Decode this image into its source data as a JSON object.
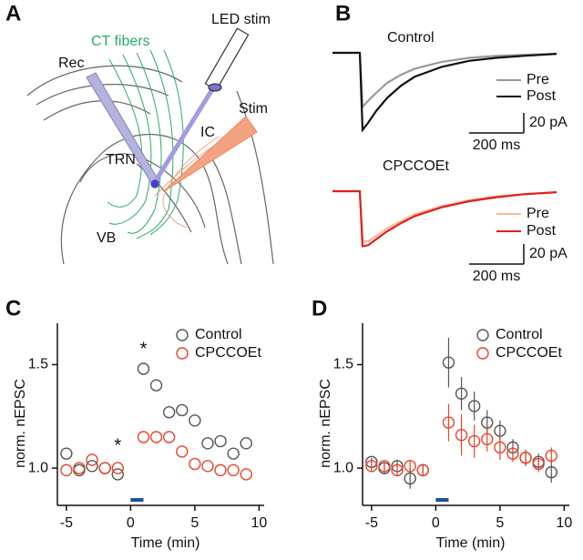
{
  "panels": [
    "A",
    "B",
    "C",
    "D"
  ],
  "diagram": {
    "labels": [
      "CT fibers",
      "LED stim",
      "Rec",
      "Stim",
      "IC",
      "TRN",
      "VB"
    ]
  },
  "chart_data": [
    {
      "type": "line",
      "title": "Control",
      "x": [
        0,
        100,
        110,
        130,
        160,
        200,
        250,
        300,
        400,
        500,
        600,
        700,
        820
      ],
      "series": [
        {
          "name": "Pre",
          "color": "#999999",
          "values": [
            0,
            0,
            -54,
            -48,
            -40,
            -30,
            -22,
            -16,
            -9,
            -5,
            -3,
            -2,
            -1
          ]
        },
        {
          "name": "Post",
          "color": "#111111",
          "values": [
            0,
            0,
            -77,
            -70,
            -58,
            -45,
            -33,
            -24,
            -14,
            -8,
            -5,
            -3,
            -1
          ]
        }
      ],
      "scalebar": {
        "x": {
          "value": 200,
          "label": "200 ms"
        },
        "y": {
          "value": 20,
          "label": "20 pA"
        }
      }
    },
    {
      "type": "line",
      "title": "CPCCOEt",
      "x": [
        0,
        100,
        110,
        130,
        160,
        200,
        250,
        300,
        400,
        500,
        600,
        700,
        820
      ],
      "series": [
        {
          "name": "Pre",
          "color": "#f6b8a0",
          "values": [
            0,
            0,
            -50,
            -50,
            -45,
            -37,
            -30,
            -23,
            -15,
            -9,
            -5,
            -3,
            -1
          ]
        },
        {
          "name": "Post",
          "color": "#e0201b",
          "values": [
            0,
            0,
            -55,
            -54,
            -48,
            -40,
            -32,
            -25,
            -16,
            -10,
            -6,
            -3,
            -1
          ]
        }
      ],
      "scalebar": {
        "x": {
          "value": 200,
          "label": "200 ms"
        },
        "y": {
          "value": 20,
          "label": "20 pA"
        }
      }
    },
    {
      "type": "scatter",
      "x_label": "Time (min)",
      "y_label": "norm. nEPSC",
      "xlim": [
        -5.7,
        10.4
      ],
      "xticks": [
        -5,
        0,
        5,
        10
      ],
      "ylim": [
        0.82,
        1.7
      ],
      "yticks": [
        {
          "value": 1.0,
          "label": "1.0"
        },
        {
          "value": 1.5,
          "label": "1.5"
        }
      ],
      "x": [
        -5,
        -4,
        -3,
        -2,
        -1,
        1,
        2,
        3,
        4,
        5,
        6,
        7,
        8,
        9
      ],
      "series": [
        {
          "name": "Control",
          "color": "#555555",
          "values": [
            1.07,
            0.99,
            1.01,
            1.0,
            0.97,
            1.48,
            1.4,
            1.27,
            1.28,
            1.23,
            1.12,
            1.13,
            1.07,
            1.12
          ]
        },
        {
          "name": "CPCCOEt",
          "color": "#e8452c",
          "values": [
            0.99,
            1.0,
            1.04,
            1.0,
            1.0,
            1.15,
            1.15,
            1.15,
            1.08,
            1.02,
            1.01,
            0.99,
            0.99,
            0.97
          ]
        }
      ],
      "stim_period": [
        0,
        1
      ],
      "stim_color": "#1f4fa0",
      "annotations": [
        "*",
        "*"
      ],
      "legend": "upper right"
    },
    {
      "type": "scatter",
      "x_label": "Time (min)",
      "y_label": "norm. nEPSC",
      "xlim": [
        -5.7,
        10.4
      ],
      "xticks": [
        -5,
        0,
        5,
        10
      ],
      "ylim": [
        0.82,
        1.7
      ],
      "yticks": [
        {
          "value": 1.0,
          "label": "1.0"
        },
        {
          "value": 1.5,
          "label": "1.5"
        }
      ],
      "x": [
        -5,
        -4,
        -3,
        -2,
        -1,
        1,
        2,
        3,
        4,
        5,
        6,
        7,
        8,
        9
      ],
      "series": [
        {
          "name": "Control",
          "color": "#555555",
          "values": [
            1.03,
            1.0,
            1.01,
            0.95,
            0.99,
            1.51,
            1.36,
            1.3,
            1.22,
            1.18,
            1.1,
            1.05,
            1.03,
            0.98
          ],
          "errors": [
            0.02,
            0.03,
            0.03,
            0.05,
            0.03,
            0.12,
            0.08,
            0.07,
            0.06,
            0.05,
            0.04,
            0.04,
            0.04,
            0.05
          ]
        },
        {
          "name": "CPCCOEt",
          "color": "#e8452c",
          "values": [
            1.01,
            1.01,
            0.99,
            1.01,
            0.99,
            1.22,
            1.16,
            1.13,
            1.14,
            1.1,
            1.07,
            1.05,
            1.02,
            1.06
          ],
          "errors": [
            0.03,
            0.02,
            0.03,
            0.03,
            0.02,
            0.09,
            0.1,
            0.08,
            0.06,
            0.06,
            0.04,
            0.04,
            0.04,
            0.04
          ]
        }
      ],
      "stim_period": [
        0,
        1
      ],
      "stim_color": "#1f4fa0",
      "legend": "upper right"
    }
  ]
}
